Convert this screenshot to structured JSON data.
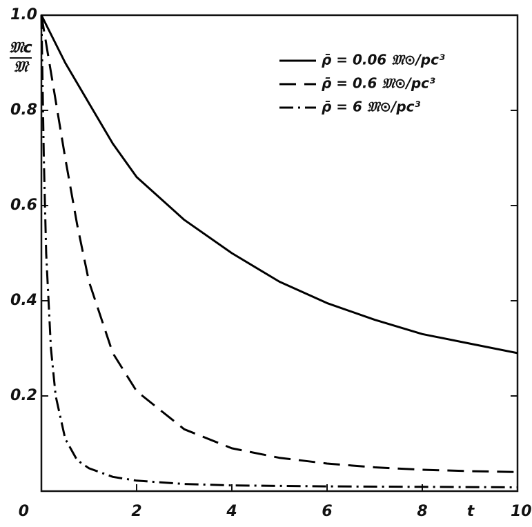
{
  "chart_data": {
    "type": "line",
    "y_label_numerator": "𝔐c",
    "y_label_denominator": "𝔐",
    "x_label": "t",
    "xlim": [
      0,
      10
    ],
    "ylim": [
      0,
      1.0
    ],
    "xticks": [
      0,
      2,
      4,
      6,
      8,
      10
    ],
    "yticks": [
      0.2,
      0.4,
      0.6,
      0.8,
      {
        "value": 1,
        "label": "1.0"
      }
    ],
    "legend": "upper right",
    "grid": false,
    "series": [
      {
        "name": "ρ̄ = 0.06  𝔐⊙/pc³",
        "color": "#000000",
        "style": "solid",
        "x": [
          0,
          0.5,
          1,
          1.5,
          2,
          3,
          4,
          5,
          6,
          7,
          8,
          9,
          10
        ],
        "values": [
          1.0,
          0.9,
          0.815,
          0.73,
          0.66,
          0.57,
          0.5,
          0.44,
          0.395,
          0.36,
          0.33,
          0.31,
          0.29
        ]
      },
      {
        "name": "ρ̄ = 0.6  𝔐⊙/pc³",
        "color": "#000000",
        "style": "dashed",
        "x": [
          0,
          0.25,
          0.5,
          0.75,
          1,
          1.5,
          2,
          3,
          4,
          5,
          6,
          7,
          8,
          9,
          10
        ],
        "values": [
          1.0,
          0.85,
          0.7,
          0.56,
          0.44,
          0.29,
          0.21,
          0.13,
          0.09,
          0.07,
          0.058,
          0.05,
          0.045,
          0.042,
          0.04
        ]
      },
      {
        "name": "ρ̄ = 6  𝔐⊙/pc³",
        "color": "#000000",
        "style": "dashdot",
        "x": [
          0,
          0.05,
          0.1,
          0.2,
          0.3,
          0.5,
          0.75,
          1,
          1.5,
          2,
          3,
          4,
          6,
          8,
          10
        ],
        "values": [
          1.0,
          0.7,
          0.5,
          0.3,
          0.2,
          0.11,
          0.065,
          0.048,
          0.03,
          0.022,
          0.015,
          0.012,
          0.01,
          0.009,
          0.008
        ]
      }
    ]
  }
}
